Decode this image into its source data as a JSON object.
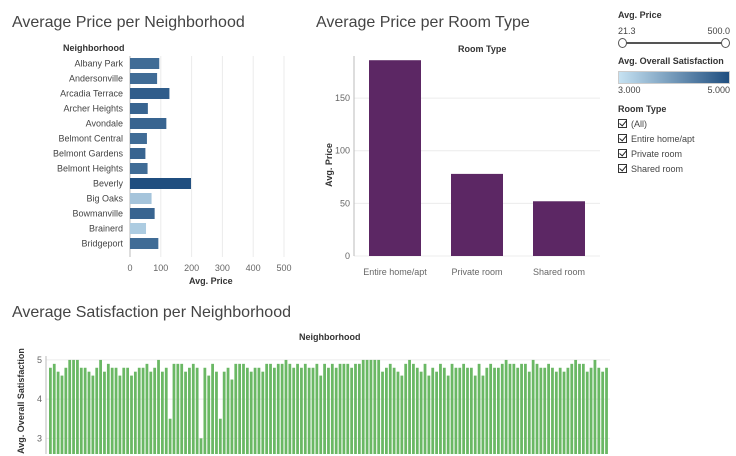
{
  "dashboard": {
    "titles": {
      "neighborhood_price": "Average Price per Neighborhood",
      "room_type_price": "Average Price per Room Type",
      "satisfaction": "Average Satisfaction per Neighborhood"
    }
  },
  "filters": {
    "avg_price": {
      "title": "Avg. Price",
      "min": "21.3",
      "max": "500.0",
      "value_low": 21.3,
      "value_high": 500.0
    },
    "satisfaction_legend": {
      "title": "Avg. Overall Satisfaction",
      "min": "3.000",
      "max": "5.000",
      "color_low": "#c6e2f2",
      "color_high": "#1f4e7f"
    },
    "room_type": {
      "title": "Room Type",
      "options": [
        {
          "label": "(All)",
          "checked": true
        },
        {
          "label": "Entire home/apt",
          "checked": true
        },
        {
          "label": "Private room",
          "checked": true
        },
        {
          "label": "Shared room",
          "checked": true
        }
      ]
    }
  },
  "chart_data": [
    {
      "type": "bar",
      "orientation": "horizontal",
      "title": "Average Price per Neighborhood",
      "header": "Neighborhood",
      "xlabel": "Avg. Price",
      "xlim": [
        0,
        500
      ],
      "xticks": [
        "0",
        "100",
        "200",
        "300",
        "400",
        "500"
      ],
      "color_encoding": "Avg. Overall Satisfaction",
      "categories": [
        "Albany Park",
        "Andersonville",
        "Arcadia Terrace",
        "Archer Heights",
        "Avondale",
        "Belmont Central",
        "Belmont Gardens",
        "Belmont Heights",
        "Beverly",
        "Big Oaks",
        "Bowmanville",
        "Brainerd",
        "Bridgeport"
      ],
      "values": [
        95,
        88,
        128,
        58,
        118,
        55,
        50,
        57,
        198,
        70,
        80,
        52,
        92
      ],
      "satisfaction": [
        4.6,
        4.6,
        4.8,
        4.7,
        4.7,
        4.6,
        4.7,
        4.6,
        5.0,
        3.4,
        4.7,
        3.3,
        4.6
      ]
    },
    {
      "type": "bar",
      "title": "Average Price per Room Type",
      "header": "Room Type",
      "ylabel": "Avg. Price",
      "ylim": [
        0,
        190
      ],
      "yticks": [
        "0",
        "50",
        "100",
        "150"
      ],
      "categories": [
        "Entire home/apt",
        "Private room",
        "Shared room"
      ],
      "values": [
        186,
        78,
        52
      ],
      "color": "#5c2764"
    },
    {
      "type": "bar",
      "title": "Average Satisfaction per Neighborhood",
      "header": "Neighborhood",
      "ylabel": "Avg. Overall Satisfaction",
      "ylim": [
        2.6,
        5.1
      ],
      "yticks": [
        "5",
        "4",
        "3"
      ],
      "color": "#6ab864",
      "values": [
        4.8,
        4.9,
        4.7,
        4.6,
        4.8,
        5,
        5,
        5,
        4.8,
        4.8,
        4.7,
        4.6,
        4.8,
        5,
        4.7,
        4.9,
        4.8,
        4.8,
        4.6,
        4.8,
        4.8,
        4.6,
        4.7,
        4.8,
        4.8,
        4.9,
        4.7,
        4.8,
        5,
        4.7,
        4.8,
        3.5,
        4.9,
        4.9,
        4.9,
        4.7,
        4.8,
        4.9,
        4.8,
        3,
        4.8,
        4.6,
        4.9,
        4.7,
        3.5,
        4.7,
        4.8,
        4.5,
        4.9,
        4.9,
        4.9,
        4.8,
        4.7,
        4.8,
        4.8,
        4.7,
        4.9,
        4.9,
        4.8,
        4.9,
        4.9,
        5,
        4.9,
        4.8,
        4.9,
        4.8,
        4.9,
        4.8,
        4.8,
        4.9,
        4.6,
        4.9,
        4.8,
        4.9,
        4.8,
        4.9,
        4.9,
        4.9,
        4.8,
        4.9,
        4.9,
        5,
        5,
        5,
        5,
        5,
        4.7,
        4.8,
        4.9,
        4.8,
        4.7,
        4.6,
        4.9,
        5,
        4.9,
        4.8,
        4.7,
        4.9,
        4.6,
        4.8,
        4.7,
        4.9,
        4.8,
        4.6,
        4.9,
        4.8,
        4.8,
        4.9,
        4.8,
        4.8,
        4.6,
        4.9,
        4.6,
        4.8,
        4.9,
        4.8,
        4.8,
        4.9,
        5,
        4.9,
        4.9,
        4.8,
        4.9,
        4.9,
        4.7,
        5,
        4.9,
        4.8,
        4.8,
        4.9,
        4.8,
        4.7,
        4.8,
        4.7,
        4.8,
        4.9,
        5,
        4.9,
        4.9,
        4.7,
        4.8,
        5,
        4.8,
        4.7,
        4.8
      ]
    }
  ]
}
